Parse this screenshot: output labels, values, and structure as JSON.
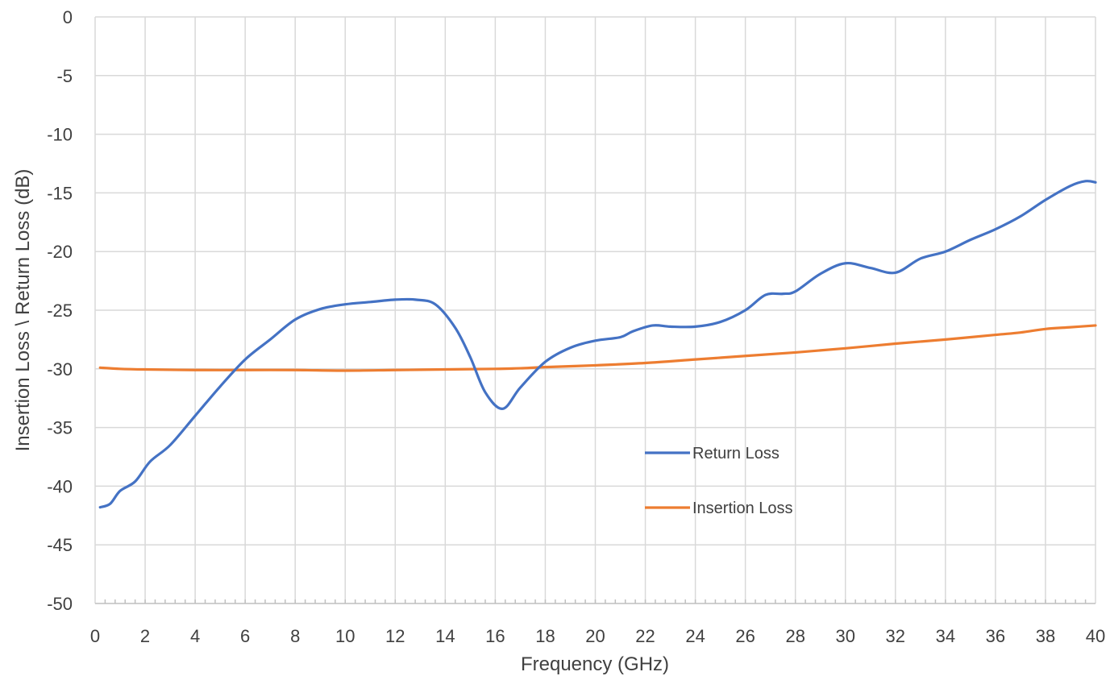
{
  "chart_data": {
    "type": "line",
    "title": "",
    "xlabel": "Frequency (GHz)",
    "ylabel": "Insertion Loss \\ Return Loss (dB)",
    "xlim": [
      0,
      40
    ],
    "ylim": [
      -50,
      0
    ],
    "x_ticks": [
      0,
      2,
      4,
      6,
      8,
      10,
      12,
      14,
      16,
      18,
      20,
      22,
      24,
      26,
      28,
      30,
      32,
      34,
      36,
      38,
      40
    ],
    "y_ticks": [
      0,
      -5,
      -10,
      -15,
      -20,
      -25,
      -30,
      -35,
      -40,
      -45,
      -50
    ],
    "grid": "on",
    "legend_position": "center-right",
    "series": [
      {
        "name": "Return Loss",
        "color": "#4472c4",
        "points": [
          [
            0.2,
            -41.8
          ],
          [
            0.6,
            -41.5
          ],
          [
            1.0,
            -40.4
          ],
          [
            1.6,
            -39.6
          ],
          [
            2.2,
            -37.9
          ],
          [
            3.0,
            -36.5
          ],
          [
            4.0,
            -34.0
          ],
          [
            5.0,
            -31.5
          ],
          [
            6.0,
            -29.2
          ],
          [
            7.0,
            -27.5
          ],
          [
            8.0,
            -25.8
          ],
          [
            9.0,
            -24.9
          ],
          [
            10.0,
            -24.5
          ],
          [
            11.0,
            -24.3
          ],
          [
            12.0,
            -24.1
          ],
          [
            12.8,
            -24.1
          ],
          [
            13.6,
            -24.5
          ],
          [
            14.4,
            -26.5
          ],
          [
            15.0,
            -29.0
          ],
          [
            15.6,
            -32.0
          ],
          [
            16.3,
            -33.4
          ],
          [
            17.0,
            -31.6
          ],
          [
            18.0,
            -29.4
          ],
          [
            19.0,
            -28.2
          ],
          [
            20.0,
            -27.6
          ],
          [
            21.0,
            -27.3
          ],
          [
            21.5,
            -26.8
          ],
          [
            22.3,
            -26.3
          ],
          [
            23.0,
            -26.4
          ],
          [
            24.0,
            -26.4
          ],
          [
            25.0,
            -26.0
          ],
          [
            26.0,
            -25.0
          ],
          [
            26.8,
            -23.7
          ],
          [
            27.5,
            -23.6
          ],
          [
            28.0,
            -23.4
          ],
          [
            29.0,
            -21.9
          ],
          [
            30.0,
            -21.0
          ],
          [
            31.0,
            -21.4
          ],
          [
            32.0,
            -21.8
          ],
          [
            33.0,
            -20.6
          ],
          [
            34.0,
            -20.0
          ],
          [
            35.0,
            -19.0
          ],
          [
            36.0,
            -18.1
          ],
          [
            37.0,
            -17.0
          ],
          [
            38.0,
            -15.6
          ],
          [
            39.0,
            -14.4
          ],
          [
            39.6,
            -14.0
          ],
          [
            40.0,
            -14.1
          ]
        ]
      },
      {
        "name": "Insertion Loss",
        "color": "#ed7d31",
        "points": [
          [
            0.2,
            -29.9
          ],
          [
            1.0,
            -30.0
          ],
          [
            2.0,
            -30.05
          ],
          [
            4.0,
            -30.1
          ],
          [
            6.0,
            -30.1
          ],
          [
            8.0,
            -30.1
          ],
          [
            10.0,
            -30.15
          ],
          [
            12.0,
            -30.1
          ],
          [
            14.0,
            -30.05
          ],
          [
            16.0,
            -30.0
          ],
          [
            17.0,
            -29.95
          ],
          [
            18.0,
            -29.85
          ],
          [
            20.0,
            -29.7
          ],
          [
            22.0,
            -29.5
          ],
          [
            24.0,
            -29.2
          ],
          [
            26.0,
            -28.9
          ],
          [
            28.0,
            -28.6
          ],
          [
            30.0,
            -28.25
          ],
          [
            32.0,
            -27.85
          ],
          [
            34.0,
            -27.5
          ],
          [
            36.0,
            -27.1
          ],
          [
            37.0,
            -26.9
          ],
          [
            38.0,
            -26.6
          ],
          [
            39.0,
            -26.45
          ],
          [
            40.0,
            -26.3
          ]
        ]
      }
    ]
  }
}
